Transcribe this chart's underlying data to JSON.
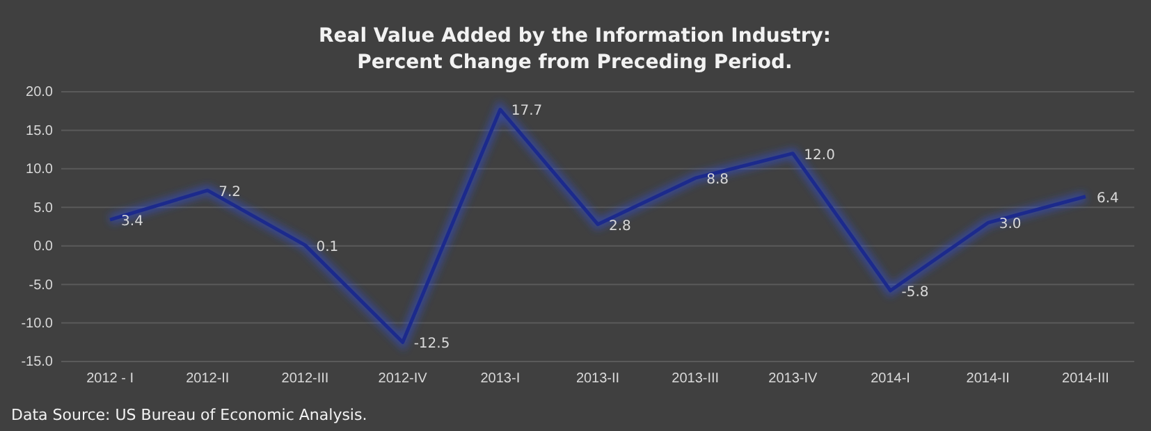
{
  "chart_data": {
    "type": "line",
    "title": "Real Value Added by the Information Industry:\nPercent Change from Preceding Period.",
    "categories": [
      "2012 - I",
      "2012-II",
      "2012-III",
      "2012-IV",
      "2013-I",
      "2013-II",
      "2013-III",
      "2013-IV",
      "2014-I",
      "2014-II",
      "2014-III"
    ],
    "series": [
      {
        "color": "#1c2a8c",
        "values": [
          3.4,
          7.2,
          0.1,
          -12.5,
          17.7,
          2.8,
          8.8,
          12.0,
          -5.8,
          3.0,
          6.4
        ],
        "value_labels": [
          "3.4",
          "7.2",
          "0.1",
          "-12.5",
          "17.7",
          "2.8",
          "8.8",
          "12.0",
          "-5.8",
          "3.0",
          "6.4"
        ]
      }
    ],
    "ylim": [
      -15,
      20
    ],
    "yticks": [
      {
        "value": -15,
        "label": "-15.0"
      },
      {
        "value": -10,
        "label": "-10.0"
      },
      {
        "value": -5,
        "label": "-5.0"
      },
      {
        "value": 0,
        "label": "0.0"
      },
      {
        "value": 5,
        "label": "5.0"
      },
      {
        "value": 10,
        "label": "10.0"
      },
      {
        "value": 15,
        "label": "15.0"
      },
      {
        "value": 20,
        "label": "20.0"
      }
    ],
    "grid": "y",
    "marker": "none",
    "line_style": "solid",
    "annotations": [
      "Data Source: US Bureau of Economic Analysis."
    ]
  }
}
